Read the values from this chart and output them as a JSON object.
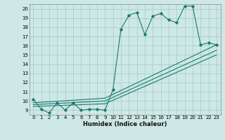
{
  "bg_color": "#cde8e5",
  "grid_color": "#aacfcc",
  "line_color": "#1a7a6e",
  "xlabel": "Humidex (Indice chaleur)",
  "xlim": [
    -0.5,
    23.5
  ],
  "ylim": [
    8.5,
    20.5
  ],
  "xticks": [
    0,
    1,
    2,
    3,
    4,
    5,
    6,
    7,
    8,
    9,
    10,
    11,
    12,
    13,
    14,
    15,
    16,
    17,
    18,
    19,
    20,
    21,
    22,
    23
  ],
  "yticks": [
    9,
    10,
    11,
    12,
    13,
    14,
    15,
    16,
    17,
    18,
    19,
    20
  ],
  "series1": [
    [
      0,
      10.2
    ],
    [
      1,
      9.1
    ],
    [
      2,
      8.7
    ],
    [
      3,
      9.8
    ],
    [
      4,
      9.0
    ],
    [
      5,
      9.8
    ],
    [
      6,
      9.0
    ],
    [
      7,
      9.1
    ],
    [
      8,
      9.1
    ],
    [
      9,
      9.0
    ],
    [
      10,
      11.2
    ],
    [
      11,
      17.8
    ],
    [
      12,
      19.3
    ],
    [
      13,
      19.6
    ],
    [
      14,
      17.2
    ],
    [
      15,
      19.2
    ],
    [
      16,
      19.5
    ],
    [
      17,
      18.8
    ],
    [
      18,
      18.5
    ],
    [
      19,
      20.3
    ],
    [
      20,
      20.3
    ],
    [
      21,
      16.1
    ],
    [
      22,
      16.3
    ],
    [
      23,
      16.1
    ]
  ],
  "line2": [
    [
      0,
      9.8
    ],
    [
      9,
      10.3
    ],
    [
      23,
      16.1
    ]
  ],
  "line3": [
    [
      0,
      9.6
    ],
    [
      9,
      10.0
    ],
    [
      23,
      15.5
    ]
  ],
  "line4": [
    [
      0,
      9.4
    ],
    [
      9,
      9.7
    ],
    [
      23,
      15.0
    ]
  ]
}
